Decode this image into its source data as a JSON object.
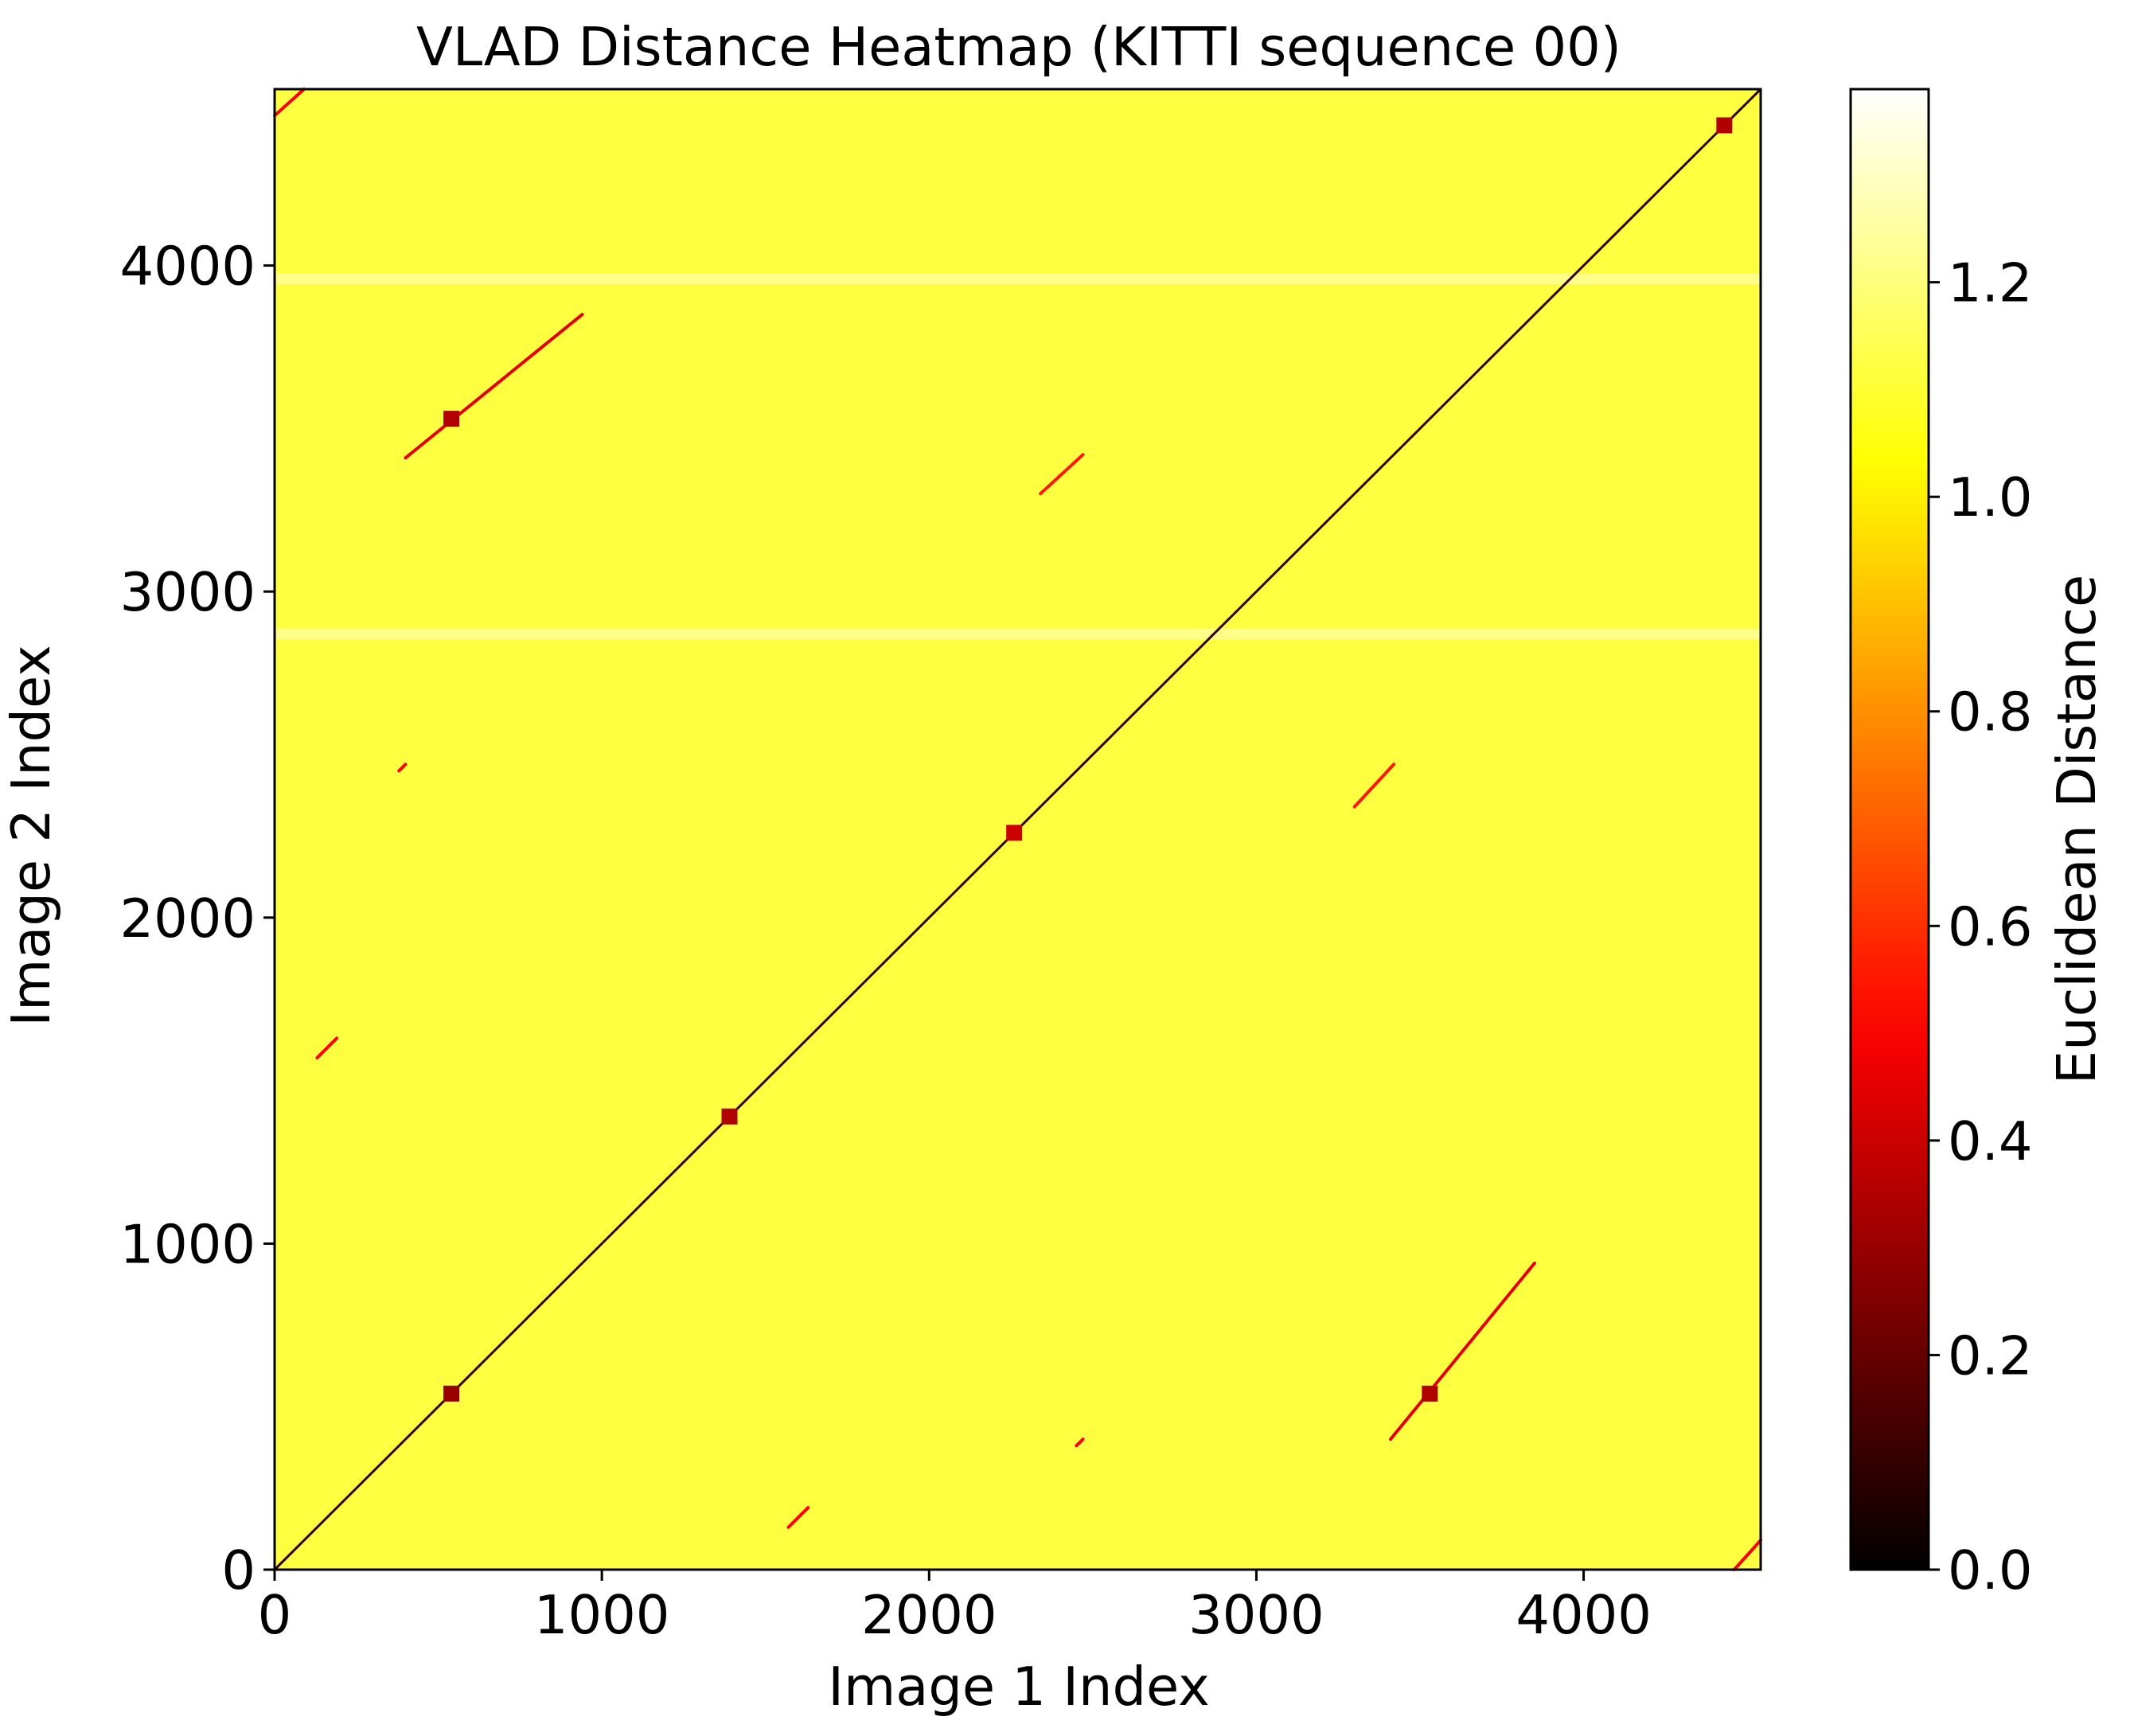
{
  "chart_data": {
    "type": "heatmap",
    "title": "VLAD Distance Heatmap (KITTI sequence 00)",
    "xlabel": "Image 1 Index",
    "ylabel": "Image 2 Index",
    "xlim": [
      0,
      4541
    ],
    "ylim": [
      0,
      4541
    ],
    "x_ticks": [
      0,
      1000,
      2000,
      3000,
      4000
    ],
    "y_ticks": [
      0,
      1000,
      2000,
      3000,
      4000
    ],
    "x_tick_labels": [
      "0",
      "1000",
      "2000",
      "3000",
      "4000"
    ],
    "y_tick_labels": [
      "0",
      "1000",
      "2000",
      "3000",
      "4000"
    ],
    "colormap": "hot",
    "colorbar": {
      "label": "Euclidean Distance",
      "range": [
        0.0,
        1.38
      ],
      "ticks": [
        0.0,
        0.2,
        0.4,
        0.6,
        0.8,
        1.0,
        1.2
      ],
      "tick_labels": [
        "0.0",
        "0.2",
        "0.4",
        "0.6",
        "0.8",
        "1.0",
        "1.2"
      ]
    },
    "background_distance": 1.12,
    "bright_bands_y": [
      3960,
      2870
    ],
    "diagonal": {
      "from": 0,
      "to": 4541,
      "distance": 0.1
    },
    "loop_closure_segments": [
      {
        "x": [
          400,
          940
        ],
        "y": [
          3410,
          3850
        ],
        "distance": 0.45
      },
      {
        "x": [
          3410,
          3850
        ],
        "y": [
          400,
          940
        ],
        "distance": 0.45
      },
      {
        "x": [
          2340,
          2470
        ],
        "y": [
          3300,
          3420
        ],
        "distance": 0.55
      },
      {
        "x": [
          3300,
          3420
        ],
        "y": [
          2340,
          2470
        ],
        "distance": 0.55
      },
      {
        "x": [
          130,
          190
        ],
        "y": [
          1570,
          1630
        ],
        "distance": 0.5
      },
      {
        "x": [
          1570,
          1630
        ],
        "y": [
          130,
          190
        ],
        "distance": 0.5
      },
      {
        "x": [
          0,
          90
        ],
        "y": [
          4460,
          4541
        ],
        "distance": 0.5
      },
      {
        "x": [
          4460,
          4541
        ],
        "y": [
          0,
          90
        ],
        "distance": 0.5
      },
      {
        "x": [
          380,
          400
        ],
        "y": [
          2450,
          2470
        ],
        "distance": 0.5
      },
      {
        "x": [
          2450,
          2470
        ],
        "y": [
          380,
          400
        ],
        "distance": 0.5
      }
    ],
    "hotspots": [
      {
        "x": 540,
        "y": 540,
        "distance": 0.3
      },
      {
        "x": 1390,
        "y": 1390,
        "distance": 0.35
      },
      {
        "x": 2260,
        "y": 2260,
        "distance": 0.4
      },
      {
        "x": 4430,
        "y": 4430,
        "distance": 0.35
      },
      {
        "x": 540,
        "y": 3530,
        "distance": 0.35
      },
      {
        "x": 3530,
        "y": 540,
        "distance": 0.35
      }
    ]
  }
}
